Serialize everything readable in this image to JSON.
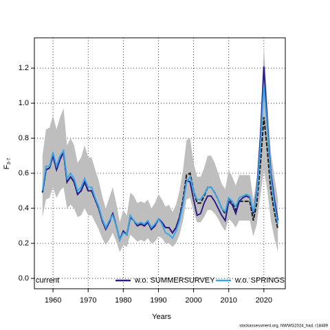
{
  "chart_data": {
    "type": "line",
    "xlabel": "Years",
    "ylabel": "F",
    "ylabel_sub": "3-7",
    "footer": "stockassessment.org, NWWG2024_had, r18489",
    "x": [
      1957,
      1958,
      1959,
      1960,
      1961,
      1962,
      1963,
      1964,
      1965,
      1966,
      1967,
      1968,
      1969,
      1970,
      1971,
      1972,
      1973,
      1974,
      1975,
      1976,
      1977,
      1978,
      1979,
      1980,
      1981,
      1982,
      1983,
      1984,
      1985,
      1986,
      1987,
      1988,
      1989,
      1990,
      1991,
      1992,
      1993,
      1994,
      1995,
      1996,
      1997,
      1998,
      1999,
      2000,
      2001,
      2002,
      2003,
      2004,
      2005,
      2006,
      2007,
      2008,
      2009,
      2010,
      2011,
      2012,
      2013,
      2014,
      2015,
      2016,
      2017,
      2018,
      2019,
      2020,
      2021,
      2022,
      2023,
      2024
    ],
    "band": {
      "color": "#bebebe",
      "low": [
        0.35,
        0.45,
        0.46,
        0.52,
        0.46,
        0.5,
        0.52,
        0.4,
        0.42,
        0.4,
        0.35,
        0.36,
        0.4,
        0.36,
        0.36,
        0.32,
        0.28,
        0.23,
        0.19,
        0.22,
        0.26,
        0.21,
        0.15,
        0.19,
        0.18,
        0.25,
        0.23,
        0.21,
        0.22,
        0.21,
        0.23,
        0.2,
        0.21,
        0.24,
        0.23,
        0.2,
        0.2,
        0.18,
        0.2,
        0.25,
        0.33,
        0.45,
        0.46,
        0.38,
        0.32,
        0.32,
        0.35,
        0.39,
        0.39,
        0.37,
        0.34,
        0.3,
        0.27,
        0.34,
        0.32,
        0.29,
        0.33,
        0.33,
        0.33,
        0.33,
        0.24,
        0.31,
        0.47,
        0.62,
        0.5,
        0.33,
        0.23,
        0.15
      ],
      "high": [
        0.7,
        0.85,
        0.86,
        0.93,
        0.85,
        0.92,
        0.97,
        0.76,
        0.8,
        0.76,
        0.66,
        0.69,
        0.76,
        0.69,
        0.69,
        0.62,
        0.56,
        0.47,
        0.4,
        0.46,
        0.52,
        0.43,
        0.32,
        0.39,
        0.36,
        0.49,
        0.47,
        0.43,
        0.44,
        0.43,
        0.45,
        0.4,
        0.43,
        0.48,
        0.45,
        0.41,
        0.42,
        0.38,
        0.42,
        0.5,
        0.62,
        0.79,
        0.8,
        0.66,
        0.58,
        0.58,
        0.63,
        0.7,
        0.7,
        0.66,
        0.6,
        0.54,
        0.51,
        0.62,
        0.58,
        0.53,
        0.59,
        0.59,
        0.59,
        0.59,
        0.45,
        0.58,
        0.88,
        1.32,
        1.0,
        0.72,
        0.58,
        0.45
      ]
    },
    "series": [
      {
        "name": "current",
        "color": "#222222",
        "values": [
          0.49,
          0.62,
          0.63,
          0.7,
          0.62,
          0.68,
          0.72,
          0.55,
          0.58,
          0.55,
          0.48,
          0.5,
          0.55,
          0.5,
          0.5,
          0.45,
          0.4,
          0.33,
          0.28,
          0.32,
          0.37,
          0.3,
          0.22,
          0.27,
          0.25,
          0.35,
          0.33,
          0.3,
          0.31,
          0.3,
          0.32,
          0.28,
          0.3,
          0.34,
          0.32,
          0.29,
          0.29,
          0.26,
          0.29,
          0.35,
          0.45,
          0.59,
          0.6,
          0.5,
          0.43,
          0.43,
          0.47,
          0.52,
          0.52,
          0.49,
          0.45,
          0.4,
          0.37,
          0.46,
          0.43,
          0.39,
          0.44,
          0.44,
          0.44,
          0.44,
          0.33,
          0.43,
          0.65,
          0.92,
          0.73,
          0.5,
          0.38,
          0.28
        ]
      },
      {
        "name": "w.o. SUMMERSURVEY",
        "color": "#2b1f8c",
        "values": [
          0.49,
          0.62,
          0.63,
          0.7,
          0.62,
          0.68,
          0.72,
          0.55,
          0.58,
          0.55,
          0.48,
          0.5,
          0.55,
          0.5,
          0.5,
          0.45,
          0.4,
          0.33,
          0.28,
          0.32,
          0.37,
          0.3,
          0.22,
          0.27,
          0.25,
          0.35,
          0.33,
          0.3,
          0.31,
          0.3,
          0.32,
          0.28,
          0.3,
          0.34,
          0.32,
          0.29,
          0.29,
          0.26,
          0.29,
          0.35,
          0.43,
          0.56,
          0.55,
          0.45,
          0.36,
          0.37,
          0.43,
          0.47,
          0.47,
          0.44,
          0.4,
          0.36,
          0.33,
          0.44,
          0.42,
          0.37,
          0.44,
          0.46,
          0.47,
          0.46,
          0.37,
          0.5,
          0.8,
          1.21,
          0.88,
          0.6,
          0.45,
          0.33
        ]
      },
      {
        "name": "w.o. SPRINGSUF",
        "color": "#3aa6ea",
        "values": [
          0.5,
          0.64,
          0.64,
          0.72,
          0.64,
          0.7,
          0.73,
          0.57,
          0.6,
          0.57,
          0.5,
          0.52,
          0.57,
          0.52,
          0.52,
          0.46,
          0.41,
          0.34,
          0.29,
          0.33,
          0.36,
          0.3,
          0.22,
          0.26,
          0.25,
          0.36,
          0.33,
          0.31,
          0.32,
          0.31,
          0.33,
          0.29,
          0.31,
          0.34,
          0.31,
          0.26,
          0.25,
          0.23,
          0.27,
          0.33,
          0.42,
          0.55,
          0.58,
          0.5,
          0.45,
          0.45,
          0.48,
          0.52,
          0.52,
          0.49,
          0.45,
          0.4,
          0.38,
          0.46,
          0.44,
          0.41,
          0.46,
          0.47,
          0.48,
          0.47,
          0.38,
          0.48,
          0.75,
          1.1,
          0.85,
          0.57,
          0.42,
          0.31
        ]
      }
    ],
    "xlim": [
      1954.7,
      2026.1
    ],
    "ylim": [
      -0.059,
      1.373
    ],
    "xticks": [
      1960,
      1970,
      1980,
      1990,
      2000,
      2010,
      2020
    ],
    "yticks": [
      {
        "value": 0,
        "label": "0.0"
      },
      0.2,
      0.4,
      0.6,
      0.8,
      {
        "value": 1,
        "label": "1.0"
      },
      1.2
    ],
    "grid": true,
    "legend": "bottom"
  }
}
